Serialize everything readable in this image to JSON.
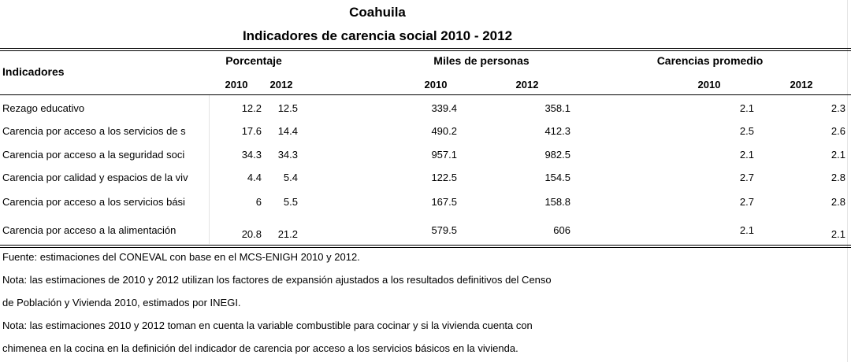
{
  "header": {
    "title": "Coahuila",
    "subtitle": "Indicadores de carencia social 2010 - 2012"
  },
  "table": {
    "row_header": "Indicadores",
    "groups": [
      "Porcentaje",
      "Miles de personas",
      "Carencias promedio"
    ],
    "years": [
      "2010",
      "2012",
      "2010",
      "2012",
      "2010",
      "2012"
    ],
    "rows": [
      [
        "Rezago educativo",
        12.2,
        12.5,
        339.4,
        358.1,
        2.1,
        2.3
      ],
      [
        "Carencia por acceso a los servicios de s",
        17.6,
        14.4,
        490.2,
        412.3,
        2.5,
        2.6
      ],
      [
        "Carencia por acceso a la seguridad soci",
        34.3,
        34.3,
        957.1,
        982.5,
        2.1,
        2.1
      ],
      [
        "Carencia por calidad y espacios de la viv",
        4.4,
        5.4,
        122.5,
        154.5,
        2.7,
        2.8
      ],
      [
        "Carencia por acceso a los servicios bási",
        6,
        5.5,
        167.5,
        158.8,
        2.7,
        2.8
      ],
      [
        "Carencia por acceso a la alimentación",
        20.8,
        21.2,
        579.5,
        606,
        2.1,
        2.1
      ]
    ]
  },
  "notes": [
    "Fuente: estimaciones del CONEVAL con base en el MCS-ENIGH 2010 y 2012.",
    "Nota: las estimaciones de 2010 y 2012 utilizan los factores de expansión ajustados a los resultados definitivos del Censo",
    "de Población y Vivienda 2010, estimados por INEGI.",
    "Nota: las estimaciones 2010 y 2012 toman en cuenta la variable combustible para cocinar y si la vivienda cuenta con",
    "chimenea en la cocina en la definición del indicador de carencia por acceso a los servicios básicos en la vivienda."
  ]
}
